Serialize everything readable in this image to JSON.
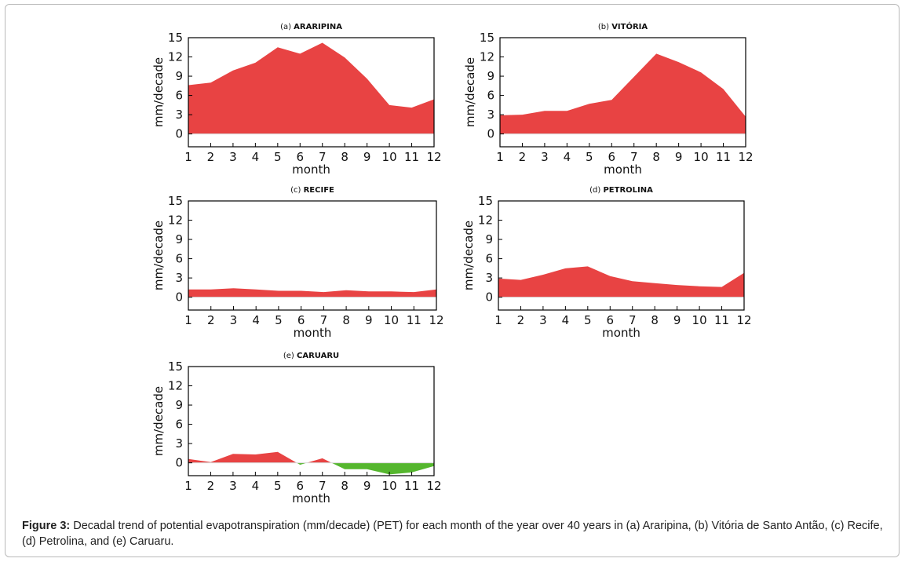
{
  "caption": {
    "label": "Figure 3:",
    "text": " Decadal trend of potential evapotranspiration (mm/decade) (PET) for each month of the year over 40 years in (a) Araripina, (b) Vitória de Santo Antão, (c) Recife, (d) Petrolina, and (e) Caruaru."
  },
  "colors": {
    "positive": "#e84343",
    "negative": "#55b62e",
    "axis": "#000000"
  },
  "chart_data": [
    {
      "type": "area",
      "panel": "(a)",
      "title": "ARARIPINA",
      "xlabel": "month",
      "ylabel": "mm/decade",
      "x": [
        1,
        2,
        3,
        4,
        5,
        6,
        7,
        8,
        9,
        10,
        11,
        12
      ],
      "values": [
        7.6,
        8.0,
        9.9,
        11.1,
        13.5,
        12.5,
        14.2,
        11.9,
        8.6,
        4.5,
        4.1,
        5.4
      ],
      "ylim": [
        -2,
        15
      ],
      "yticks": [
        0,
        3,
        6,
        9,
        12,
        15
      ],
      "xticks": [
        1,
        2,
        3,
        4,
        5,
        6,
        7,
        8,
        9,
        10,
        11,
        12
      ]
    },
    {
      "type": "area",
      "panel": "(b)",
      "title": "VITÓRIA",
      "xlabel": "month",
      "ylabel": "mm/decade",
      "x": [
        1,
        2,
        3,
        4,
        5,
        6,
        7,
        8,
        9,
        10,
        11,
        12
      ],
      "values": [
        2.9,
        3.0,
        3.6,
        3.6,
        4.7,
        5.3,
        8.9,
        12.5,
        11.2,
        9.6,
        7.0,
        2.7
      ],
      "ylim": [
        -2,
        15
      ],
      "yticks": [
        0,
        3,
        6,
        9,
        12,
        15
      ],
      "xticks": [
        1,
        2,
        3,
        4,
        5,
        6,
        7,
        8,
        9,
        10,
        11,
        12
      ]
    },
    {
      "type": "area",
      "panel": "(c)",
      "title": "RECIFE",
      "xlabel": "month",
      "ylabel": "mm/decade",
      "x": [
        1,
        2,
        3,
        4,
        5,
        6,
        7,
        8,
        9,
        10,
        11,
        12
      ],
      "values": [
        1.2,
        1.2,
        1.4,
        1.2,
        1.0,
        1.0,
        0.8,
        1.1,
        0.9,
        0.9,
        0.8,
        1.2
      ],
      "ylim": [
        -2,
        15
      ],
      "yticks": [
        0,
        3,
        6,
        9,
        12,
        15
      ],
      "xticks": [
        1,
        2,
        3,
        4,
        5,
        6,
        7,
        8,
        9,
        10,
        11,
        12
      ]
    },
    {
      "type": "area",
      "panel": "(d)",
      "title": "PETROLINA",
      "xlabel": "month",
      "ylabel": "mm/decade",
      "x": [
        1,
        2,
        3,
        4,
        5,
        6,
        7,
        8,
        9,
        10,
        11,
        12
      ],
      "values": [
        2.9,
        2.7,
        3.5,
        4.5,
        4.8,
        3.3,
        2.5,
        2.2,
        1.9,
        1.7,
        1.6,
        3.8
      ],
      "ylim": [
        -2,
        15
      ],
      "yticks": [
        0,
        3,
        6,
        9,
        12,
        15
      ],
      "xticks": [
        1,
        2,
        3,
        4,
        5,
        6,
        7,
        8,
        9,
        10,
        11,
        12
      ]
    },
    {
      "type": "area",
      "panel": "(e)",
      "title": "CARUARU",
      "xlabel": "month",
      "ylabel": "mm/decade",
      "x": [
        1,
        2,
        3,
        4,
        5,
        6,
        7,
        8,
        9,
        10,
        11,
        12
      ],
      "values": [
        0.6,
        0.1,
        1.4,
        1.3,
        1.7,
        -0.3,
        0.7,
        -1.0,
        -1.0,
        -1.8,
        -1.5,
        -0.5
      ],
      "ylim": [
        -2,
        15
      ],
      "yticks": [
        0,
        3,
        6,
        9,
        12,
        15
      ],
      "xticks": [
        1,
        2,
        3,
        4,
        5,
        6,
        7,
        8,
        9,
        10,
        11,
        12
      ]
    }
  ]
}
